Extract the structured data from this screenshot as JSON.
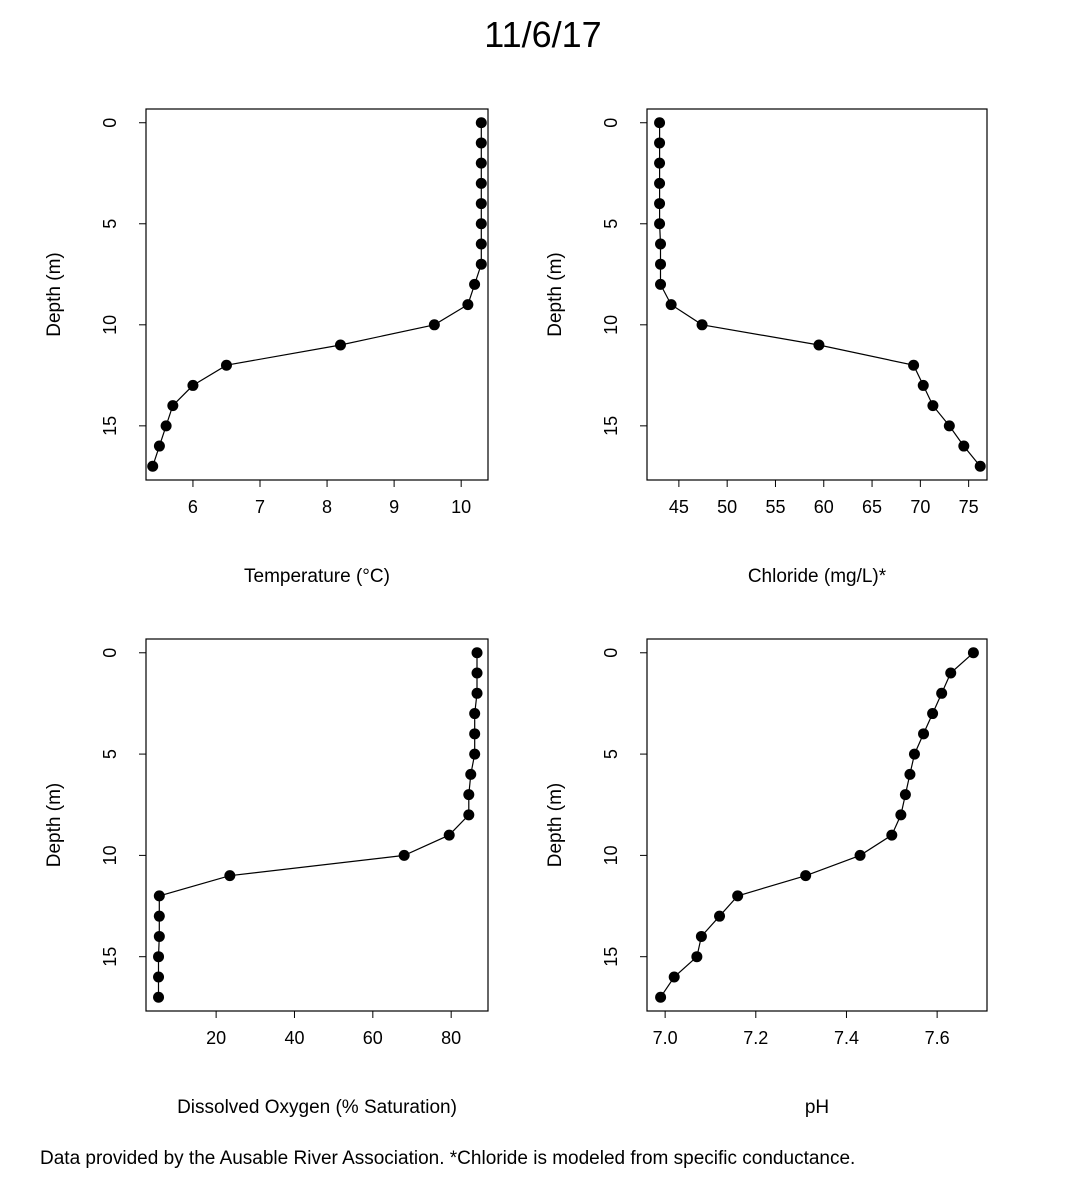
{
  "title": "11/6/17",
  "footnote": "Data provided by the Ausable River Association. *Chloride is modeled from specific conductance.",
  "chart_data": [
    {
      "type": "line",
      "title": "",
      "xlabel": "Temperature (°C)",
      "ylabel": "Depth (m)",
      "y_reversed": true,
      "xlim": [
        5.3,
        10.4
      ],
      "ylim": [
        0,
        17
      ],
      "xticks": [
        6,
        7,
        8,
        9,
        10
      ],
      "yticks": [
        0,
        5,
        10,
        15
      ],
      "markers": "filled-circle",
      "x": [
        10.3,
        10.3,
        10.3,
        10.3,
        10.3,
        10.3,
        10.3,
        10.3,
        10.2,
        10.1,
        9.6,
        8.2,
        6.5,
        6.0,
        5.7,
        5.6,
        5.5,
        5.4
      ],
      "y": [
        0,
        1,
        2,
        3,
        4,
        5,
        6,
        7,
        8,
        9,
        10,
        11,
        12,
        13,
        14,
        15,
        16,
        17
      ]
    },
    {
      "type": "line",
      "title": "",
      "xlabel": "Chloride (mg/L)*",
      "ylabel": "Depth (m)",
      "y_reversed": true,
      "xlim": [
        41.7,
        76.9
      ],
      "ylim": [
        0,
        17
      ],
      "xticks": [
        45,
        50,
        55,
        60,
        65,
        70,
        75
      ],
      "yticks": [
        0,
        5,
        10,
        15
      ],
      "markers": "filled-circle",
      "x": [
        43.0,
        43.0,
        43.0,
        43.0,
        43.0,
        43.0,
        43.1,
        43.1,
        43.1,
        44.2,
        47.4,
        59.5,
        69.3,
        70.3,
        71.3,
        73.0,
        74.5,
        76.2
      ],
      "y": [
        0,
        1,
        2,
        3,
        4,
        5,
        6,
        7,
        8,
        9,
        10,
        11,
        12,
        13,
        14,
        15,
        16,
        17
      ]
    },
    {
      "type": "line",
      "title": "",
      "xlabel": "Dissolved Oxygen (% Saturation)",
      "ylabel": "Depth (m)",
      "y_reversed": true,
      "xlim": [
        2.1,
        89.4
      ],
      "ylim": [
        0,
        17
      ],
      "xticks": [
        20,
        40,
        60,
        80
      ],
      "yticks": [
        0,
        5,
        10,
        15
      ],
      "markers": "filled-circle",
      "x": [
        86.6,
        86.6,
        86.6,
        86.0,
        86.0,
        86.0,
        85.0,
        84.5,
        84.5,
        79.5,
        68.0,
        23.5,
        5.5,
        5.5,
        5.5,
        5.3,
        5.3,
        5.3
      ],
      "y": [
        0,
        1,
        2,
        3,
        4,
        5,
        6,
        7,
        8,
        9,
        10,
        11,
        12,
        13,
        14,
        15,
        16,
        17
      ]
    },
    {
      "type": "line",
      "title": "",
      "xlabel": "pH",
      "ylabel": "Depth (m)",
      "y_reversed": true,
      "xlim": [
        6.96,
        7.71
      ],
      "ylim": [
        0,
        17
      ],
      "xticks": [
        "7.0",
        "7.2",
        "7.4",
        "7.6"
      ],
      "yticks": [
        0,
        5,
        10,
        15
      ],
      "markers": "filled-circle",
      "x": [
        7.68,
        7.63,
        7.61,
        7.59,
        7.57,
        7.55,
        7.54,
        7.53,
        7.52,
        7.5,
        7.43,
        7.31,
        7.16,
        7.12,
        7.08,
        7.07,
        7.02,
        6.99
      ],
      "y": [
        0,
        1,
        2,
        3,
        4,
        5,
        6,
        7,
        8,
        9,
        10,
        11,
        12,
        13,
        14,
        15,
        16,
        17
      ]
    }
  ]
}
